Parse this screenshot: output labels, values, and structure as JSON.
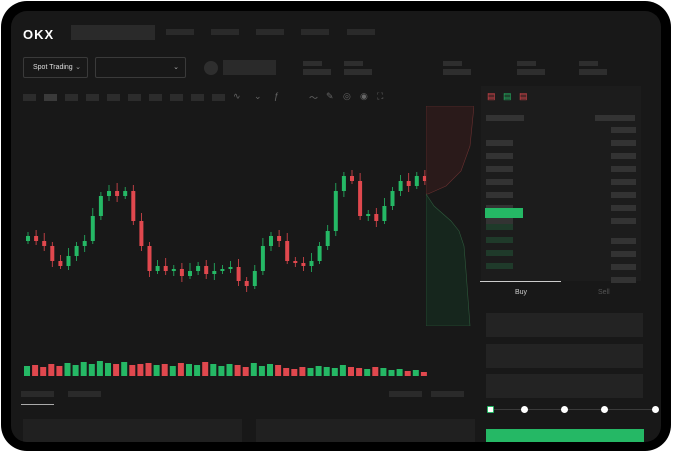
{
  "header": {
    "logo": "OKX"
  },
  "toolbar": {
    "market_select": "Spot Trading",
    "pair_select": ""
  },
  "orderbook": {
    "icons": [
      "orderbook-both-icon",
      "orderbook-buy-icon",
      "orderbook-sell-icon"
    ]
  },
  "trade": {
    "tabs": [
      {
        "label": "Buy",
        "active": true
      },
      {
        "label": "Sell",
        "active": false
      }
    ],
    "slider_percent": 0,
    "submit_color": "#25b865"
  },
  "colors": {
    "up": "#25b865",
    "down": "#e0484e",
    "background": "#181818"
  },
  "chart_data": {
    "type": "candlestick",
    "close": [
      95,
      90,
      85,
      70,
      65,
      75,
      85,
      90,
      115,
      135,
      140,
      135,
      140,
      110,
      85,
      60,
      65,
      60,
      62,
      55,
      60,
      65,
      57,
      60,
      62,
      64,
      50,
      45,
      60,
      85,
      95,
      90,
      70,
      68,
      65,
      70,
      85,
      100,
      140,
      155,
      150,
      115,
      117,
      110,
      125,
      140,
      150,
      145,
      155,
      150
    ],
    "volume": [
      10,
      11,
      9,
      12,
      10,
      13,
      11,
      14,
      12,
      15,
      13,
      12,
      14,
      11,
      12,
      13,
      11,
      12,
      10,
      13,
      12,
      11,
      14,
      12,
      10,
      12,
      11,
      9,
      13,
      10,
      12,
      11,
      8,
      7,
      9,
      8,
      10,
      9,
      8,
      11,
      9,
      8,
      7,
      9,
      8,
      6,
      7,
      5,
      6,
      4
    ]
  }
}
